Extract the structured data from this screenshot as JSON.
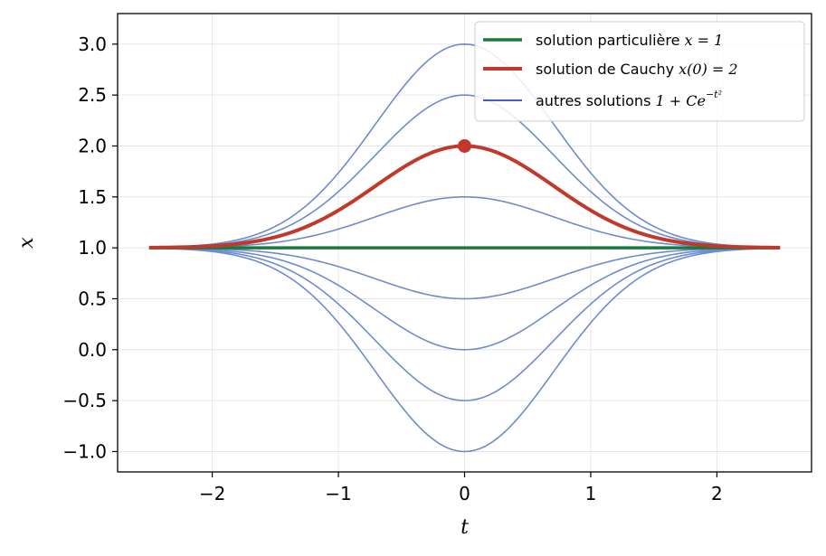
{
  "chart_data": {
    "type": "line",
    "xlabel": "t",
    "ylabel": "x",
    "xlim": [
      -2.75,
      2.75
    ],
    "ylim": [
      -1.2,
      3.3
    ],
    "x_ticks": [
      -2,
      -1,
      0,
      1,
      2
    ],
    "x_tick_labels": [
      "−2",
      "−1",
      "0",
      "1",
      "2"
    ],
    "y_ticks": [
      -1.0,
      -0.5,
      0.0,
      0.5,
      1.0,
      1.5,
      2.0,
      2.5,
      3.0
    ],
    "y_tick_labels": [
      "−1.0",
      "−0.5",
      "0.0",
      "0.5",
      "1.0",
      "1.5",
      "2.0",
      "2.5",
      "3.0"
    ],
    "grid": true,
    "legend_position": "top-right",
    "t_range": [
      -2.5,
      2.5
    ],
    "colors": {
      "particular": "#1a7a3e",
      "cauchy": "#c0392b",
      "others": "#6f8bd0",
      "others_legend": "#2a47b8"
    },
    "series": [
      {
        "name": "solution particulière x = 1",
        "formula": "x = 1",
        "role": "particular"
      },
      {
        "name": "solution de Cauchy x(0) = 2",
        "formula": "x = 1 + e^(-t^2)",
        "C": 1,
        "role": "cauchy"
      },
      {
        "name": "autres solutions 1 + Ce^(-t²)",
        "formula": "x = 1 + C e^(-t^2)",
        "C_values": [
          2,
          1.5,
          0.5,
          -0.5,
          -1,
          -1.5,
          -2
        ],
        "role": "others"
      }
    ],
    "marker": {
      "t": 0,
      "x": 2
    },
    "legend": [
      {
        "prefix": "solution particulière ",
        "math": "x = 1",
        "sup": ""
      },
      {
        "prefix": "solution de Cauchy ",
        "math": "x(0) = 2",
        "sup": ""
      },
      {
        "prefix": "autres solutions ",
        "math": "1 + Ce",
        "sup": "−t²"
      }
    ]
  }
}
